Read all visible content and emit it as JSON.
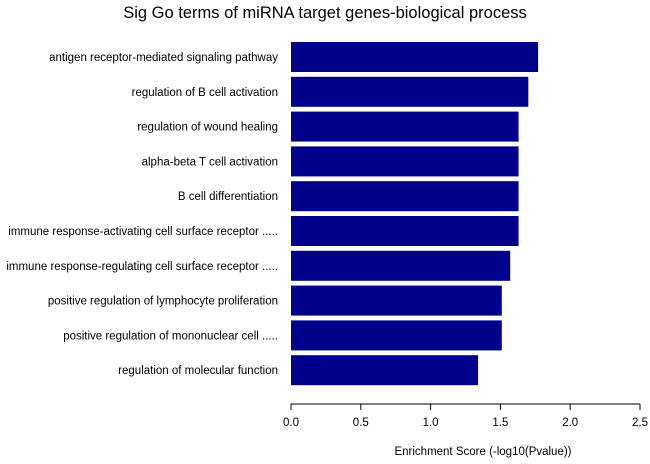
{
  "chart_data": {
    "type": "bar",
    "orientation": "horizontal",
    "title": "Sig Go terms of miRNA target genes-biological process",
    "xlabel": "Enrichment Score (-log10(Pvalue))",
    "ylabel": "",
    "categories": [
      "antigen receptor-mediated signaling pathway",
      "regulation of B cell activation",
      "regulation of wound healing",
      "alpha-beta T cell activation",
      "B cell differentiation",
      "immune response-activating cell surface receptor .....",
      "immune response-regulating cell surface receptor .....",
      "positive regulation of lymphocyte proliferation",
      "positive regulation of mononuclear cell .....",
      "regulation of molecular function"
    ],
    "values": [
      1.77,
      1.7,
      1.63,
      1.63,
      1.63,
      1.63,
      1.57,
      1.51,
      1.51,
      1.34
    ],
    "xlim": [
      0,
      2.5
    ],
    "xticks": [
      "0.0",
      "0.5",
      "1.0",
      "1.5",
      "2.0",
      "2.5"
    ],
    "bar_color": "#00008B",
    "grid": false,
    "legend": "none"
  }
}
